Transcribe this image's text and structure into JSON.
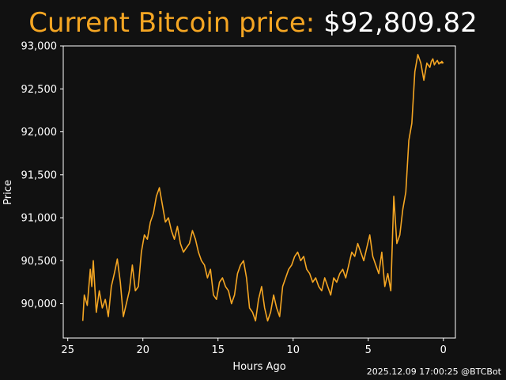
{
  "colors": {
    "background": "#111111",
    "accent": "#F5A623",
    "text": "#FFFFFF",
    "line": "#F5A623"
  },
  "header": {
    "title_label": "Current Bitcoin price:",
    "price": "$92,809.82"
  },
  "footer": {
    "stamp": "2025.12.09 17:00:25 @BTCBot"
  },
  "chart_data": {
    "type": "line",
    "title": "Current Bitcoin price: $92,809.82",
    "xlabel": "Hours Ago",
    "ylabel": "Price",
    "xlim": [
      25.3,
      -0.8
    ],
    "ylim": [
      89600,
      93000
    ],
    "xticks": [
      25,
      20,
      15,
      10,
      5,
      0
    ],
    "xtick_labels": [
      "25",
      "20",
      "15",
      "10",
      "5",
      "0"
    ],
    "yticks": [
      90000,
      90500,
      91000,
      91500,
      92000,
      92500,
      93000
    ],
    "ytick_labels": [
      "90,000",
      "90,500",
      "91,000",
      "91,500",
      "92,000",
      "92,500",
      "93,000"
    ],
    "grid": false,
    "series": [
      {
        "x": [
          24.0,
          23.9,
          23.7,
          23.5,
          23.4,
          23.3,
          23.1,
          22.9,
          22.7,
          22.5,
          22.3,
          22.1,
          21.9,
          21.7,
          21.5,
          21.3,
          21.1,
          20.9,
          20.7,
          20.5,
          20.3,
          20.1,
          19.9,
          19.7,
          19.5,
          19.3,
          19.1,
          18.9,
          18.7,
          18.5,
          18.3,
          18.1,
          17.9,
          17.7,
          17.5,
          17.3,
          17.1,
          16.9,
          16.7,
          16.5,
          16.3,
          16.1,
          15.9,
          15.7,
          15.5,
          15.3,
          15.1,
          14.9,
          14.7,
          14.5,
          14.3,
          14.1,
          13.9,
          13.7,
          13.5,
          13.3,
          13.1,
          12.9,
          12.7,
          12.5,
          12.3,
          12.1,
          11.9,
          11.7,
          11.5,
          11.3,
          11.1,
          10.9,
          10.7,
          10.5,
          10.3,
          10.1,
          9.9,
          9.7,
          9.5,
          9.3,
          9.1,
          8.9,
          8.7,
          8.5,
          8.3,
          8.1,
          7.9,
          7.7,
          7.5,
          7.3,
          7.1,
          6.9,
          6.7,
          6.5,
          6.3,
          6.1,
          5.9,
          5.7,
          5.5,
          5.3,
          5.1,
          4.9,
          4.7,
          4.5,
          4.3,
          4.1,
          3.9,
          3.7,
          3.5,
          3.3,
          3.1,
          2.9,
          2.7,
          2.5,
          2.3,
          2.1,
          1.9,
          1.7,
          1.5,
          1.3,
          1.1,
          0.9,
          0.8,
          0.7,
          0.6,
          0.5,
          0.4,
          0.3,
          0.2,
          0.15,
          0.1,
          0.05,
          0.0
        ],
        "y": [
          89800,
          90100,
          89980,
          90400,
          90200,
          90500,
          89900,
          90150,
          89950,
          90050,
          89850,
          90200,
          90350,
          90520,
          90250,
          89850,
          90000,
          90150,
          90450,
          90150,
          90200,
          90600,
          90800,
          90750,
          90950,
          91050,
          91250,
          91350,
          91150,
          90950,
          91000,
          90850,
          90750,
          90900,
          90700,
          90600,
          90650,
          90700,
          90850,
          90750,
          90600,
          90500,
          90450,
          90300,
          90400,
          90100,
          90050,
          90250,
          90300,
          90200,
          90150,
          90000,
          90100,
          90350,
          90450,
          90500,
          90300,
          89950,
          89900,
          89800,
          90050,
          90200,
          89950,
          89800,
          89900,
          90100,
          89950,
          89850,
          90200,
          90300,
          90400,
          90450,
          90550,
          90600,
          90500,
          90550,
          90400,
          90350,
          90250,
          90300,
          90200,
          90150,
          90300,
          90200,
          90100,
          90300,
          90250,
          90350,
          90400,
          90300,
          90450,
          90600,
          90550,
          90700,
          90600,
          90500,
          90650,
          90800,
          90550,
          90450,
          90350,
          90600,
          90200,
          90350,
          90150,
          91250,
          90700,
          90800,
          91100,
          91300,
          91900,
          92100,
          92700,
          92900,
          92800,
          92600,
          92800,
          92750,
          92820,
          92850,
          92780,
          92810,
          92830,
          92790,
          92810,
          92800,
          92820,
          92800,
          92809.82
        ]
      }
    ]
  }
}
